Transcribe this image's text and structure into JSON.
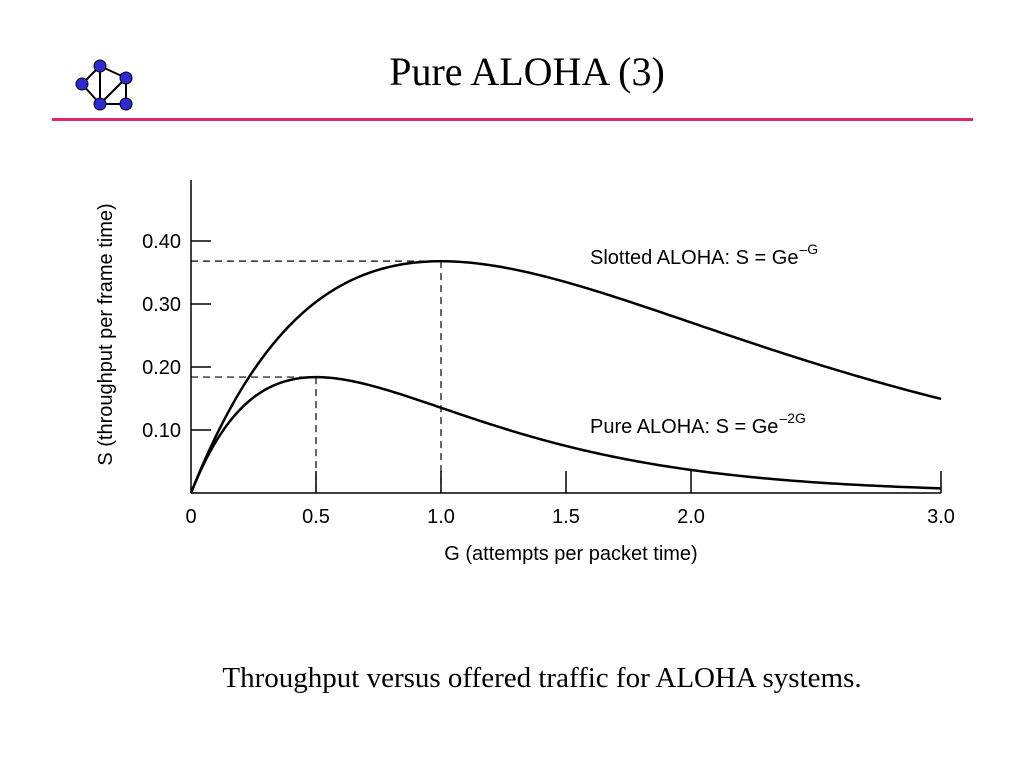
{
  "slide": {
    "title": "Pure ALOHA (3)",
    "caption": "Throughput versus offered traffic for ALOHA systems.",
    "logo_icon": "network-graph-icon",
    "accent_color": "#e0256e",
    "logo_node_color": "#2b2bd6"
  },
  "chart_data": {
    "type": "line",
    "title": "",
    "xlabel": "G (attempts per packet time)",
    "ylabel": "S (throughput per frame time)",
    "xlim": [
      0,
      3.0
    ],
    "ylim": [
      0,
      0.4
    ],
    "x_ticks": [
      0,
      0.5,
      1.0,
      1.5,
      2.0,
      3.0
    ],
    "x_tick_labels": [
      "0",
      "0.5",
      "1.0",
      "1.5",
      "2.0",
      "3.0"
    ],
    "y_ticks": [
      0.1,
      0.2,
      0.3,
      0.4
    ],
    "y_tick_labels": [
      "0.10",
      "0.20",
      "0.30",
      "0.40"
    ],
    "grid": false,
    "series": [
      {
        "name": "Slotted ALOHA",
        "label_text": "Slotted ALOHA: S = Ge",
        "label_exponent": "–G",
        "formula": "S = G·e^(−G)",
        "peak": [
          1.0,
          0.368
        ],
        "x": [
          0,
          0.25,
          0.5,
          0.75,
          1.0,
          1.25,
          1.5,
          2.0,
          2.5,
          3.0
        ],
        "values": [
          0,
          0.195,
          0.303,
          0.354,
          0.368,
          0.358,
          0.335,
          0.271,
          0.205,
          0.149
        ]
      },
      {
        "name": "Pure ALOHA",
        "label_text": "Pure ALOHA: S = Ge",
        "label_exponent": "–2G",
        "formula": "S = G·e^(−2G)",
        "peak": [
          0.5,
          0.184
        ],
        "x": [
          0,
          0.25,
          0.5,
          0.75,
          1.0,
          1.25,
          1.5,
          2.0,
          2.5,
          3.0
        ],
        "values": [
          0,
          0.152,
          0.184,
          0.167,
          0.135,
          0.103,
          0.075,
          0.037,
          0.017,
          0.007
        ]
      }
    ]
  }
}
